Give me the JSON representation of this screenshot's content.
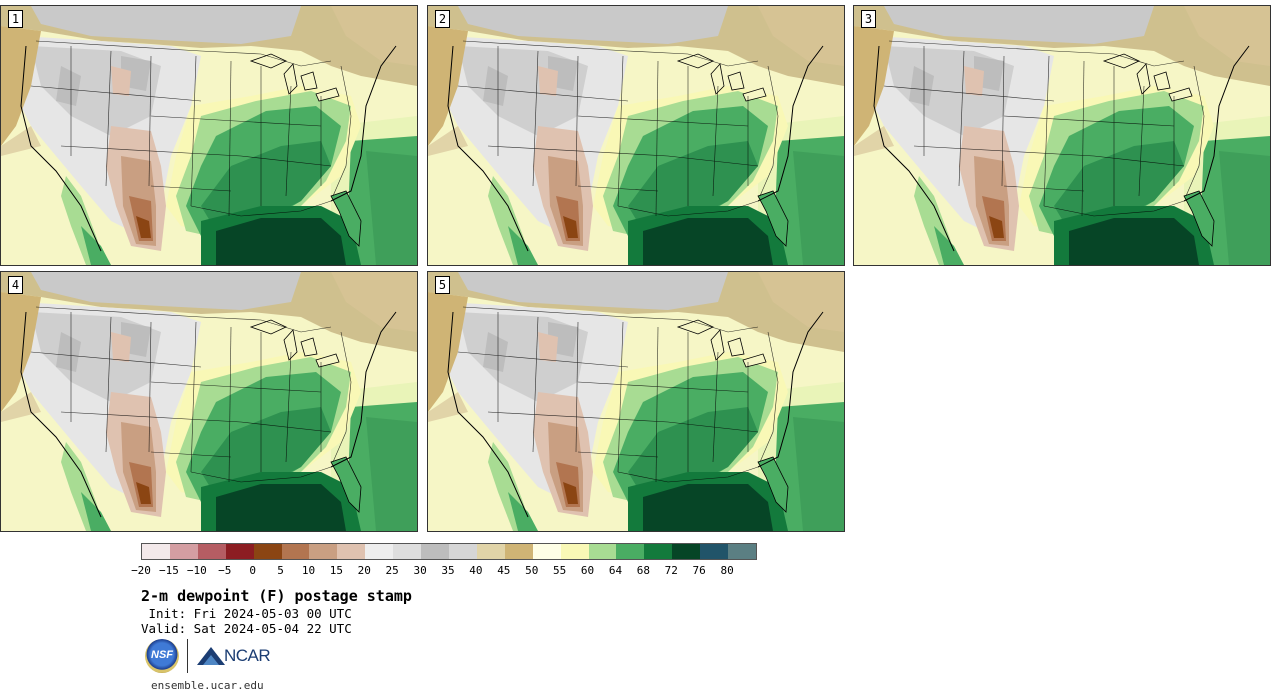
{
  "panels": [
    {
      "label": "1"
    },
    {
      "label": "2"
    },
    {
      "label": "3"
    },
    {
      "label": "4"
    },
    {
      "label": "5"
    }
  ],
  "colorbar": {
    "colors": [
      "#f3e9ea",
      "#d49ea2",
      "#b55d63",
      "#8c1d22",
      "#8b4513",
      "#b27550",
      "#c99f82",
      "#dfc2b0",
      "#eeeeee",
      "#dedede",
      "#bdbdbd",
      "#d6d6d6",
      "#e1d4a8",
      "#cfb475",
      "#fefee6",
      "#f9f8b6",
      "#a8dc93",
      "#4aad63",
      "#137a3c",
      "#064526",
      "#215469",
      "#5b7f83"
    ],
    "tick_labels": [
      "−20",
      "−15",
      "−10",
      "−5",
      "0",
      "5",
      "10",
      "15",
      "20",
      "25",
      "30",
      "35",
      "40",
      "45",
      "50",
      "55",
      "60",
      "64",
      "68",
      "72",
      "76",
      "80"
    ]
  },
  "title": "2-m dewpoint (F) postage stamp",
  "init_line": " Init: Fri 2024-05-03 00 UTC",
  "valid_line": "Valid: Sat 2024-05-04 22 UTC",
  "logos": {
    "nsf": "NSF",
    "ncar": "NCAR"
  },
  "website": "ensemble.ucar.edu"
}
